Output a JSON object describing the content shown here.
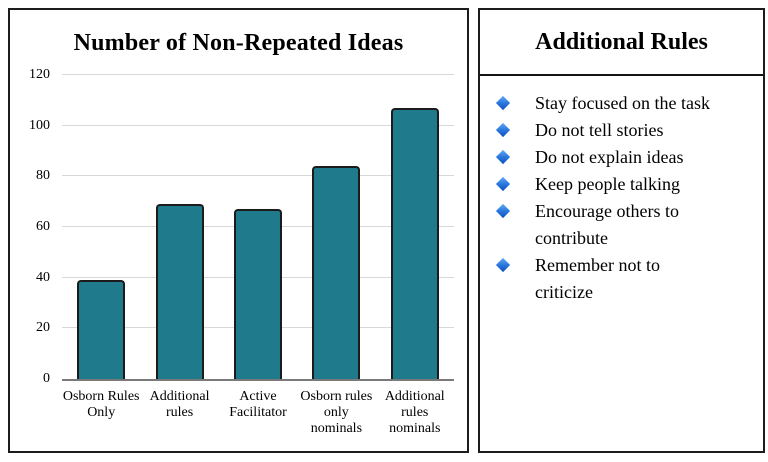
{
  "chart_data": {
    "type": "bar",
    "title": "Number of Non-Repeated Ideas",
    "categories": [
      "Osborn Rules Only",
      "Additional rules",
      "Active Facilitator",
      "Osborn rules only nominals",
      "Additional rules nominals"
    ],
    "values": [
      39,
      69,
      67,
      84,
      107
    ],
    "xlabel": "",
    "ylabel": "",
    "ylim": [
      0,
      120
    ],
    "yticks": [
      0,
      20,
      40,
      60,
      80,
      100,
      120
    ],
    "grid": true,
    "legend": false,
    "bar_color": "#1f7a8b",
    "bar_border_color": "#1b1b1b",
    "gridline_color": "#d8d8d8",
    "axis_line_color": "#7a7a7a"
  },
  "rules_panel": {
    "title": "Additional Rules",
    "bullet_icon": "diamond-icon",
    "bullet_color_top": "#63aaf6",
    "bullet_color_bottom": "#0b4fc0",
    "items": [
      "Stay focused on the task",
      "Do not tell stories",
      "Do not explain ideas",
      "Keep people talking",
      "Encourage others to contribute",
      "Remember not to criticize"
    ]
  }
}
